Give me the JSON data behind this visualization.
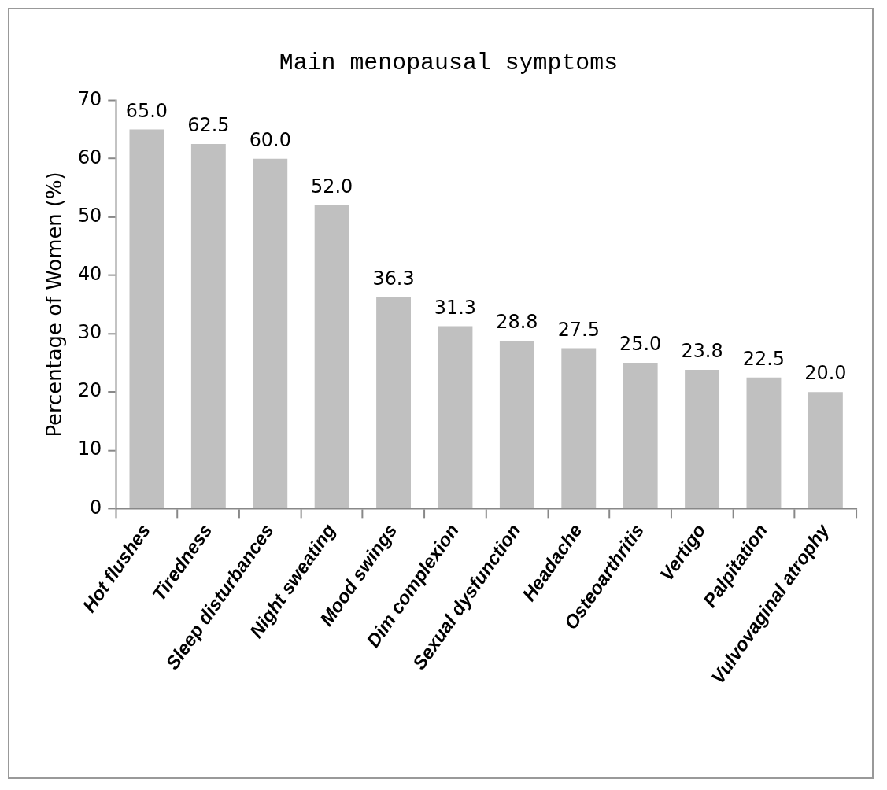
{
  "chart_data": {
    "type": "bar",
    "title": "Main menopausal symptoms",
    "ylabel": "Percentage of Women (%)",
    "categories": [
      "Hot flushes",
      "Tiredness",
      "Sleep disturbances",
      "Night sweating",
      "Mood swings",
      "Dim complexion",
      "Sexual dysfunction",
      "Headache",
      "Osteoarthritis",
      "Vertigo",
      "Palpitation",
      "Vulvovaginal atrophy"
    ],
    "values": [
      65.0,
      62.5,
      60.0,
      52.0,
      36.3,
      31.3,
      28.8,
      27.5,
      25.0,
      23.8,
      22.5,
      20.0
    ],
    "value_labels": [
      "65.0",
      "62.5",
      "60.0",
      "52.0",
      "36.3",
      "31.3",
      "28.8",
      "27.5",
      "25.0",
      "23.8",
      "22.5",
      "20.0"
    ],
    "color": "#c0c0c0",
    "ylim": [
      0,
      70
    ],
    "yticks": [
      0,
      10,
      20,
      30,
      40,
      50,
      60,
      70
    ],
    "grid": false,
    "legend": false
  }
}
